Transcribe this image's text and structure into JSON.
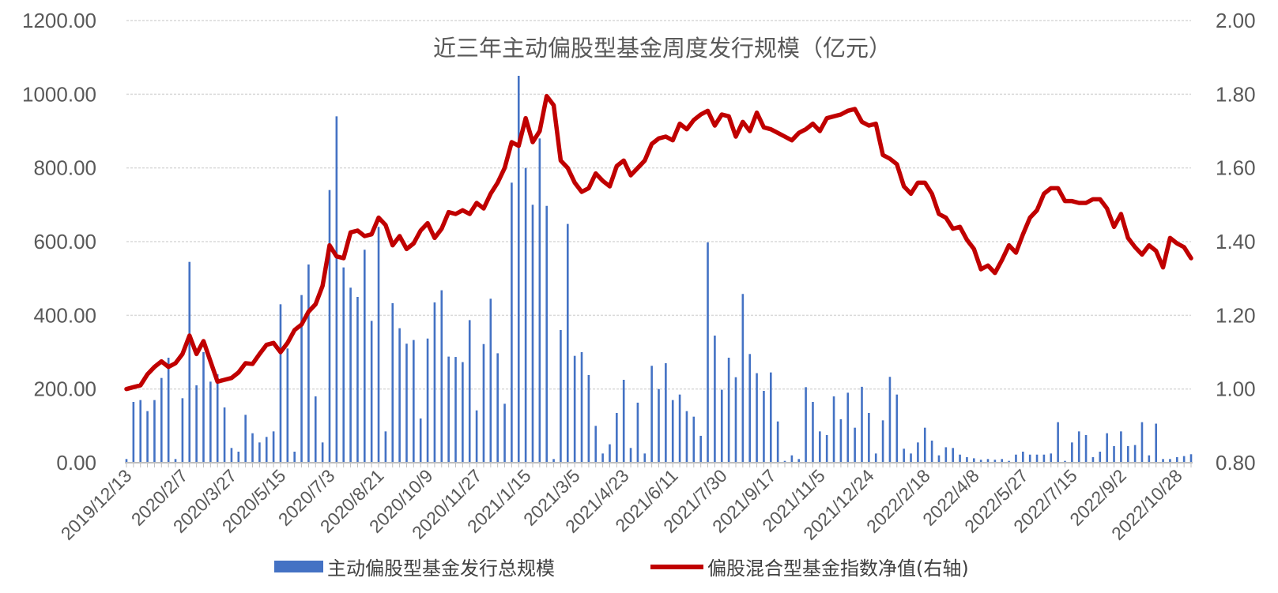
{
  "chart_data": {
    "type": "bar+line",
    "title": "近三年主动偏股型基金周度发行规模（亿元）",
    "y_left": {
      "ylim": [
        0,
        1200
      ],
      "ticks": [
        "0.00",
        "200.00",
        "400.00",
        "600.00",
        "800.00",
        "1000.00",
        "1200.00"
      ]
    },
    "y_right": {
      "ylim": [
        0.8,
        2.0
      ],
      "ticks": [
        "0.80",
        "1.00",
        "1.20",
        "1.40",
        "1.60",
        "1.80",
        "2.00"
      ]
    },
    "x_tick_labels": [
      "2019/12/13",
      "2020/2/7",
      "2020/3/27",
      "2020/5/15",
      "2020/7/3",
      "2020/8/21",
      "2020/10/9",
      "2020/11/27",
      "2021/1/15",
      "2021/3/5",
      "2021/4/23",
      "2021/6/11",
      "2021/7/30",
      "2021/9/17",
      "2021/11/5",
      "2021/12/24",
      "2022/2/18",
      "2022/4/8",
      "2022/5/27",
      "2022/7/15",
      "2022/9/2",
      "2022/10/28"
    ],
    "x_tick_weeks": [
      0,
      8,
      15,
      22,
      29,
      36,
      43,
      50,
      57,
      64,
      71,
      78,
      85,
      92,
      99,
      106,
      114,
      121,
      128,
      135,
      142,
      150
    ],
    "legend_position": "bottom",
    "grid": true,
    "series": [
      {
        "name": "主动偏股型基金发行总规模",
        "kind": "bar",
        "axis": "left",
        "color": "#4472C4",
        "values": [
          10,
          165,
          170,
          140,
          170,
          230,
          285,
          10,
          175,
          545,
          210,
          300,
          220,
          240,
          150,
          40,
          30,
          130,
          80,
          55,
          70,
          85,
          430,
          310,
          30,
          455,
          538,
          180,
          55,
          740,
          940,
          530,
          475,
          450,
          578,
          385,
          640,
          85,
          433,
          365,
          323,
          333,
          120,
          337,
          435,
          468,
          288,
          287,
          273,
          387,
          142,
          322,
          445,
          297,
          160,
          760,
          1050,
          800,
          700,
          880,
          697,
          10,
          360,
          648,
          290,
          300,
          238,
          100,
          25,
          50,
          135,
          225,
          40,
          163,
          25,
          263,
          200,
          270,
          170,
          185,
          140,
          125,
          73,
          598,
          345,
          198,
          285,
          232,
          458,
          295,
          243,
          195,
          245,
          112,
          5,
          20,
          10,
          205,
          165,
          85,
          75,
          180,
          118,
          190,
          95,
          206,
          135,
          25,
          115,
          233,
          185,
          38,
          25,
          55,
          95,
          60,
          20,
          42,
          40,
          22,
          15,
          12,
          8,
          10,
          8,
          10,
          5,
          22,
          30,
          22,
          22,
          22,
          25,
          110,
          5,
          55,
          85,
          75,
          15,
          30,
          80,
          45,
          85,
          45,
          48,
          110,
          20,
          106,
          10,
          10,
          15,
          18,
          23
        ]
      },
      {
        "name": "偏股混合型基金指数净值(右轴)",
        "kind": "line",
        "axis": "right",
        "color": "#C00000",
        "values": [
          1.0,
          1.005,
          1.01,
          1.04,
          1.06,
          1.075,
          1.06,
          1.07,
          1.095,
          1.145,
          1.095,
          1.13,
          1.075,
          1.02,
          1.025,
          1.03,
          1.045,
          1.07,
          1.068,
          1.095,
          1.12,
          1.125,
          1.1,
          1.125,
          1.16,
          1.175,
          1.21,
          1.23,
          1.28,
          1.39,
          1.36,
          1.355,
          1.425,
          1.43,
          1.415,
          1.42,
          1.465,
          1.445,
          1.39,
          1.415,
          1.38,
          1.395,
          1.43,
          1.45,
          1.41,
          1.435,
          1.48,
          1.475,
          1.485,
          1.475,
          1.505,
          1.49,
          1.53,
          1.56,
          1.6,
          1.67,
          1.66,
          1.735,
          1.67,
          1.7,
          1.795,
          1.77,
          1.62,
          1.6,
          1.56,
          1.535,
          1.545,
          1.585,
          1.565,
          1.55,
          1.605,
          1.62,
          1.58,
          1.6,
          1.62,
          1.665,
          1.68,
          1.685,
          1.675,
          1.72,
          1.705,
          1.73,
          1.745,
          1.755,
          1.715,
          1.745,
          1.74,
          1.685,
          1.725,
          1.7,
          1.75,
          1.71,
          1.705,
          1.695,
          1.685,
          1.675,
          1.695,
          1.705,
          1.72,
          1.7,
          1.735,
          1.74,
          1.745,
          1.755,
          1.76,
          1.725,
          1.715,
          1.72,
          1.635,
          1.625,
          1.61,
          1.55,
          1.53,
          1.56,
          1.56,
          1.53,
          1.475,
          1.465,
          1.435,
          1.44,
          1.405,
          1.38,
          1.325,
          1.335,
          1.315,
          1.35,
          1.39,
          1.37,
          1.42,
          1.465,
          1.485,
          1.53,
          1.545,
          1.545,
          1.51,
          1.51,
          1.505,
          1.505,
          1.515,
          1.515,
          1.49,
          1.44,
          1.475,
          1.41,
          1.385,
          1.365,
          1.39,
          1.375,
          1.33,
          1.41,
          1.395,
          1.385,
          1.355
        ]
      }
    ]
  }
}
